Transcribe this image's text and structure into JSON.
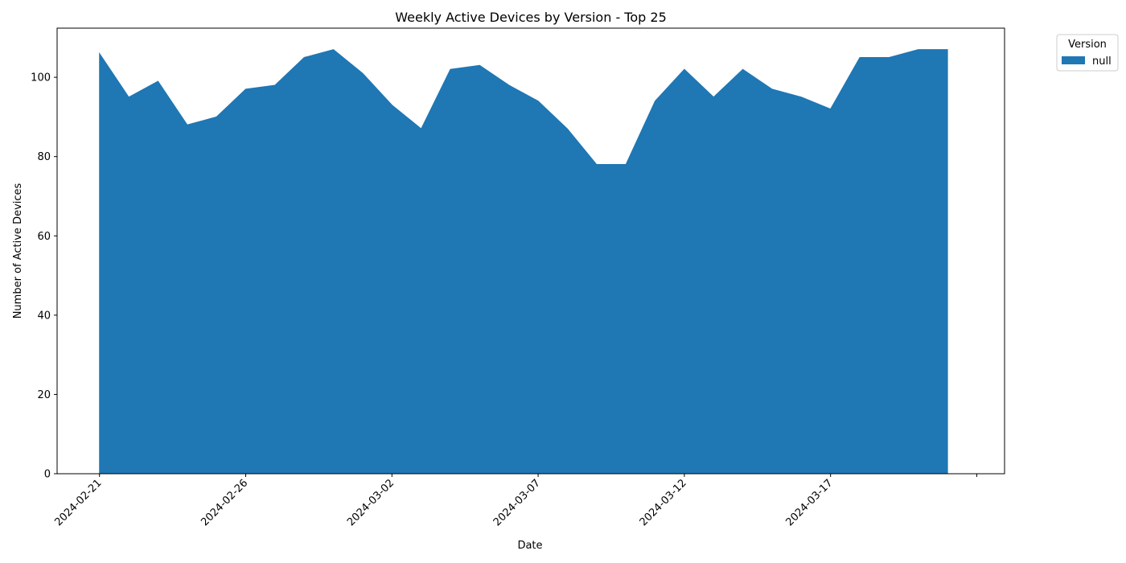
{
  "chart_data": {
    "type": "area",
    "title": "Weekly Active Devices by Version - Top 25",
    "xlabel": "Date",
    "ylabel": "Number of Active Devices",
    "x": [
      "2024-02-21",
      "2024-02-22",
      "2024-02-23",
      "2024-02-24",
      "2024-02-25",
      "2024-02-26",
      "2024-02-27",
      "2024-02-28",
      "2024-02-29",
      "2024-03-01",
      "2024-03-02",
      "2024-03-03",
      "2024-03-04",
      "2024-03-05",
      "2024-03-06",
      "2024-03-07",
      "2024-03-08",
      "2024-03-09",
      "2024-03-10",
      "2024-03-11",
      "2024-03-12",
      "2024-03-13",
      "2024-03-14",
      "2024-03-15",
      "2024-03-16",
      "2024-03-17",
      "2024-03-18",
      "2024-03-19",
      "2024-03-20",
      "2024-03-21"
    ],
    "series": [
      {
        "name": "null",
        "color": "#1f77b4",
        "values": [
          106,
          95,
          99,
          88,
          90,
          97,
          98,
          105,
          107,
          101,
          93,
          87,
          102,
          103,
          98,
          94,
          87,
          78,
          78,
          94,
          102,
          95,
          102,
          97,
          95,
          92,
          105,
          105,
          107,
          107
        ]
      }
    ],
    "x_ticks": [
      "2024-02-21",
      "2024-02-26",
      "2024-03-02",
      "2024-03-07",
      "2024-03-12",
      "2024-03-17"
    ],
    "xlim": [
      "2024-02-19.55",
      "2024-03-22.95"
    ],
    "ylim": [
      0,
      112.4
    ],
    "y_ticks": [
      0,
      20,
      40,
      60,
      80,
      100
    ],
    "legend": {
      "title": "Version",
      "placement": "outside-top-right"
    },
    "grid": false
  }
}
